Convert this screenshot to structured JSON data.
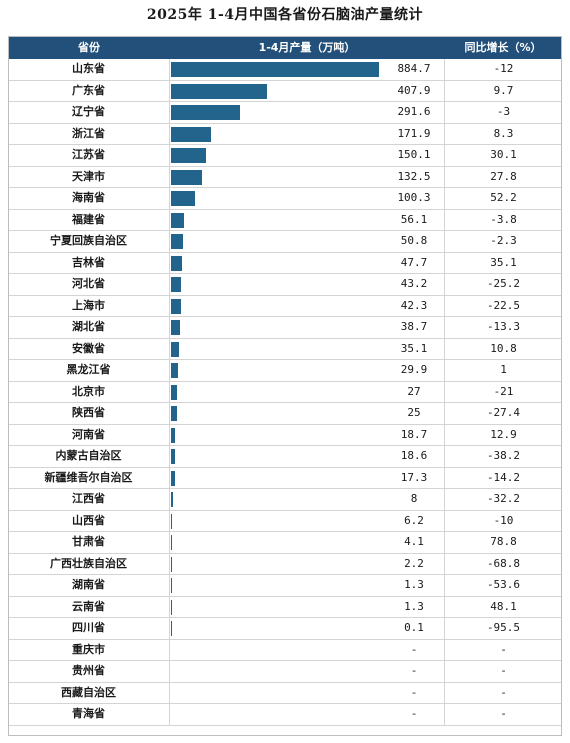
{
  "title": "2025年 1-4月中国各省份石脑油产量统计",
  "headers": {
    "province": "省份",
    "production": "1-4月产量（万吨）",
    "growth": "同比增长（%）"
  },
  "colors": {
    "header_bg": "#23507a",
    "bar": "#23648c"
  },
  "chart_data": {
    "type": "table",
    "title": "2025年 1-4月中国各省份石脑油产量统计",
    "columns": [
      "省份",
      "1-4月产量（万吨）",
      "同比增长（%）"
    ],
    "rows": [
      {
        "province": "山东省",
        "production": "884.7",
        "growth": "-12"
      },
      {
        "province": "广东省",
        "production": "407.9",
        "growth": "9.7"
      },
      {
        "province": "辽宁省",
        "production": "291.6",
        "growth": "-3"
      },
      {
        "province": "浙江省",
        "production": "171.9",
        "growth": "8.3"
      },
      {
        "province": "江苏省",
        "production": "150.1",
        "growth": "30.1"
      },
      {
        "province": "天津市",
        "production": "132.5",
        "growth": "27.8"
      },
      {
        "province": "海南省",
        "production": "100.3",
        "growth": "52.2"
      },
      {
        "province": "福建省",
        "production": "56.1",
        "growth": "-3.8"
      },
      {
        "province": "宁夏回族自治区",
        "production": "50.8",
        "growth": "-2.3"
      },
      {
        "province": "吉林省",
        "production": "47.7",
        "growth": "35.1"
      },
      {
        "province": "河北省",
        "production": "43.2",
        "growth": "-25.2"
      },
      {
        "province": "上海市",
        "production": "42.3",
        "growth": "-22.5"
      },
      {
        "province": "湖北省",
        "production": "38.7",
        "growth": "-13.3"
      },
      {
        "province": "安徽省",
        "production": "35.1",
        "growth": "10.8"
      },
      {
        "province": "黑龙江省",
        "production": "29.9",
        "growth": "1"
      },
      {
        "province": "北京市",
        "production": "27",
        "growth": "-21"
      },
      {
        "province": "陕西省",
        "production": "25",
        "growth": "-27.4"
      },
      {
        "province": "河南省",
        "production": "18.7",
        "growth": "12.9"
      },
      {
        "province": "内蒙古自治区",
        "production": "18.6",
        "growth": "-38.2"
      },
      {
        "province": "新疆维吾尔自治区",
        "production": "17.3",
        "growth": "-14.2"
      },
      {
        "province": "江西省",
        "production": "8",
        "growth": "-32.2"
      },
      {
        "province": "山西省",
        "production": "6.2",
        "growth": "-10"
      },
      {
        "province": "甘肃省",
        "production": "4.1",
        "growth": "78.8"
      },
      {
        "province": "广西壮族自治区",
        "production": "2.2",
        "growth": "-68.8"
      },
      {
        "province": "湖南省",
        "production": "1.3",
        "growth": "-53.6"
      },
      {
        "province": "云南省",
        "production": "1.3",
        "growth": "48.1"
      },
      {
        "province": "四川省",
        "production": "0.1",
        "growth": "-95.5"
      },
      {
        "province": "重庆市",
        "production": "-",
        "growth": "-"
      },
      {
        "province": "贵州省",
        "production": "-",
        "growth": "-"
      },
      {
        "province": "西藏自治区",
        "production": "-",
        "growth": "-"
      },
      {
        "province": "青海省",
        "production": "-",
        "growth": "-"
      }
    ],
    "bar_max": 884.7
  }
}
